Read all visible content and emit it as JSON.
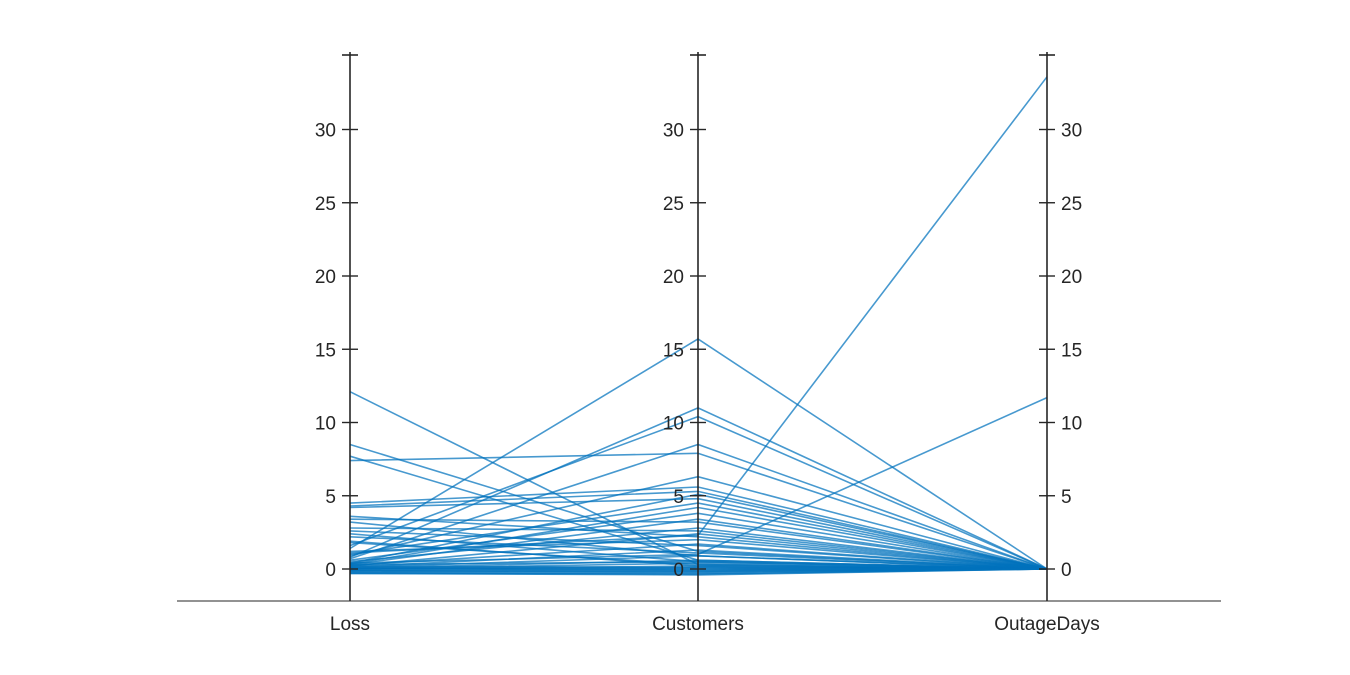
{
  "chart_data": {
    "type": "parallel-coordinates",
    "title": "",
    "coordinates": [
      "Loss",
      "Customers",
      "OutageDays"
    ],
    "ylim": [
      -2,
      35
    ],
    "yticks": [
      "0",
      "5",
      "10",
      "15",
      "20",
      "25",
      "30"
    ],
    "line_color": "#0072bd",
    "series": [
      {
        "values": [
          12.1,
          0.3,
          0.0
        ]
      },
      {
        "values": [
          8.5,
          1.2,
          0.0
        ]
      },
      {
        "values": [
          7.7,
          0.6,
          0.0
        ]
      },
      {
        "values": [
          7.4,
          7.9,
          0.0
        ]
      },
      {
        "values": [
          4.5,
          5.6,
          0.0
        ]
      },
      {
        "values": [
          4.3,
          5.3,
          0.0
        ]
      },
      {
        "values": [
          4.2,
          4.8,
          0.0
        ]
      },
      {
        "values": [
          3.6,
          2.2,
          0.0
        ]
      },
      {
        "values": [
          3.4,
          3.2,
          0.0
        ]
      },
      {
        "values": [
          3.2,
          0.9,
          0.0
        ]
      },
      {
        "values": [
          2.8,
          2.6,
          0.0
        ]
      },
      {
        "values": [
          2.6,
          1.6,
          0.0
        ]
      },
      {
        "values": [
          2.4,
          0.5,
          0.0
        ]
      },
      {
        "values": [
          2.2,
          1.1,
          0.0
        ]
      },
      {
        "values": [
          1.9,
          0.2,
          0.0
        ]
      },
      {
        "values": [
          1.8,
          0.3,
          0.0
        ]
      },
      {
        "values": [
          1.6,
          10.4,
          0.0
        ]
      },
      {
        "values": [
          1.4,
          15.7,
          0.0
        ]
      },
      {
        "values": [
          1.2,
          2.0,
          0.0
        ]
      },
      {
        "values": [
          1.0,
          4.5,
          0.0
        ]
      },
      {
        "values": [
          0.9,
          6.3,
          0.0
        ]
      },
      {
        "values": [
          0.8,
          11.0,
          0.0
        ]
      },
      {
        "values": [
          0.7,
          8.5,
          0.0
        ]
      },
      {
        "values": [
          0.6,
          3.8,
          0.0
        ]
      },
      {
        "values": [
          0.5,
          2.8,
          0.0
        ]
      },
      {
        "values": [
          0.4,
          5.1,
          0.0
        ]
      },
      {
        "values": [
          0.35,
          4.2,
          0.0
        ]
      },
      {
        "values": [
          0.3,
          3.4,
          0.0
        ]
      },
      {
        "values": [
          0.25,
          1.7,
          0.0
        ]
      },
      {
        "values": [
          0.2,
          2.4,
          0.0
        ]
      },
      {
        "values": [
          0.15,
          1.3,
          0.0
        ]
      },
      {
        "values": [
          0.1,
          0.9,
          0.0
        ]
      },
      {
        "values": [
          0.05,
          0.6,
          0.0
        ]
      },
      {
        "values": [
          0.0,
          0.4,
          0.0
        ]
      },
      {
        "values": [
          0.0,
          0.2,
          0.0
        ]
      },
      {
        "values": [
          -0.05,
          0.1,
          0.0
        ]
      },
      {
        "values": [
          -0.1,
          0.0,
          0.0
        ]
      },
      {
        "values": [
          -0.15,
          -0.1,
          0.0
        ]
      },
      {
        "values": [
          -0.2,
          -0.2,
          0.0
        ]
      },
      {
        "values": [
          -0.25,
          -0.3,
          0.0
        ]
      },
      {
        "values": [
          -0.3,
          -0.35,
          0.0
        ]
      },
      {
        "values": [
          -0.3,
          -0.4,
          0.0
        ]
      },
      {
        "values": [
          0.2,
          0.1,
          0.0
        ]
      },
      {
        "values": [
          0.1,
          0.0,
          0.0
        ]
      },
      {
        "values": [
          -0.1,
          -0.2,
          0.0
        ]
      },
      {
        "values": [
          0.3,
          0.5,
          0.0
        ]
      },
      {
        "values": [
          0.05,
          -0.1,
          0.0
        ]
      },
      {
        "values": [
          1.1,
          2.3,
          33.6
        ]
      },
      {
        "values": [
          0.4,
          1.0,
          11.7
        ]
      }
    ]
  }
}
